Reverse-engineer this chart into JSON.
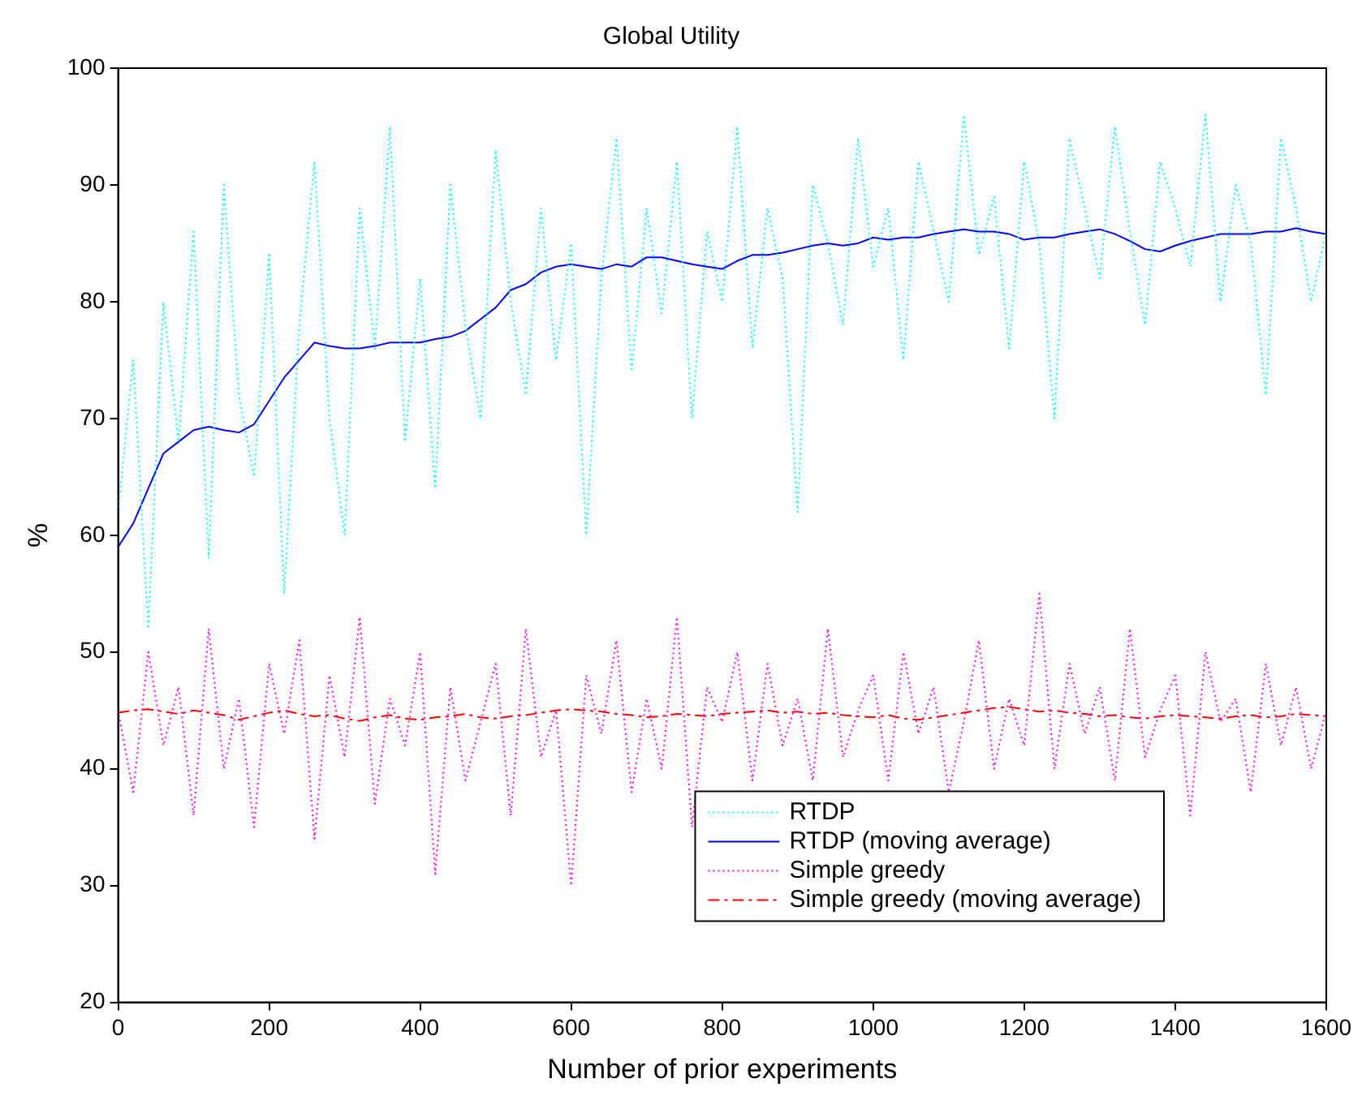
{
  "chart_data": {
    "type": "line",
    "title": "Global Utility",
    "xlabel": "Number of prior experiments",
    "ylabel": "%",
    "x": [
      0,
      20,
      40,
      60,
      80,
      100,
      120,
      140,
      160,
      180,
      200,
      220,
      240,
      260,
      280,
      300,
      320,
      340,
      360,
      380,
      400,
      420,
      440,
      460,
      480,
      500,
      520,
      540,
      560,
      580,
      600,
      620,
      640,
      660,
      680,
      700,
      720,
      740,
      760,
      780,
      800,
      820,
      840,
      860,
      880,
      900,
      920,
      940,
      960,
      980,
      1000,
      1020,
      1040,
      1060,
      1080,
      1100,
      1120,
      1140,
      1160,
      1180,
      1200,
      1220,
      1240,
      1260,
      1280,
      1300,
      1320,
      1340,
      1360,
      1380,
      1400,
      1420,
      1440,
      1460,
      1480,
      1500,
      1520,
      1540,
      1560,
      1580,
      1600
    ],
    "series": [
      {
        "name": "RTDP",
        "color": "#00ffff",
        "line_style": "dotted",
        "values": [
          62,
          75,
          52,
          80,
          68,
          86,
          58,
          90,
          72,
          65,
          84,
          55,
          78,
          92,
          70,
          60,
          88,
          76,
          95,
          68,
          82,
          64,
          90,
          78,
          70,
          93,
          80,
          72,
          88,
          75,
          85,
          60,
          82,
          94,
          74,
          88,
          79,
          92,
          70,
          86,
          80,
          95,
          76,
          88,
          82,
          62,
          90,
          85,
          78,
          94,
          83,
          88,
          75,
          92,
          86,
          80,
          96,
          84,
          89,
          76,
          92,
          85,
          70,
          94,
          88,
          82,
          95,
          86,
          78,
          92,
          88,
          83,
          96,
          80,
          90,
          85,
          72,
          94,
          88,
          80,
          86
        ]
      },
      {
        "name": "RTDP (moving average)",
        "color": "#0000ff",
        "line_style": "solid",
        "values": [
          59,
          61,
          64,
          67,
          68,
          69,
          69.3,
          69,
          68.8,
          69.5,
          71.5,
          73.5,
          75,
          76.5,
          76.2,
          76,
          76,
          76.2,
          76.5,
          76.5,
          76.5,
          76.8,
          77,
          77.5,
          78.5,
          79.5,
          81,
          81.5,
          82.5,
          83,
          83.2,
          83,
          82.8,
          83.2,
          83,
          83.8,
          83.8,
          83.5,
          83.2,
          83,
          82.8,
          83.5,
          84,
          84,
          84.2,
          84.5,
          84.8,
          85,
          84.8,
          85,
          85.5,
          85.3,
          85.5,
          85.5,
          85.8,
          86,
          86.2,
          86,
          86,
          85.8,
          85.3,
          85.5,
          85.5,
          85.8,
          86,
          86.2,
          85.8,
          85.2,
          84.5,
          84.3,
          84.8,
          85.2,
          85.5,
          85.8,
          85.8,
          85.8,
          86,
          86,
          86.3,
          86,
          85.8
        ]
      },
      {
        "name": "Simple greedy",
        "color": "#ff00ff",
        "line_style": "dotted",
        "values": [
          45,
          38,
          50,
          42,
          47,
          36,
          52,
          40,
          46,
          35,
          49,
          43,
          51,
          34,
          48,
          41,
          53,
          37,
          46,
          42,
          50,
          31,
          47,
          39,
          44,
          49,
          36,
          52,
          41,
          45,
          30,
          48,
          43,
          51,
          38,
          46,
          40,
          53,
          35,
          47,
          44,
          50,
          39,
          49,
          42,
          46,
          39,
          52,
          41,
          45,
          48,
          39,
          50,
          43,
          47,
          38,
          44,
          51,
          40,
          46,
          42,
          55,
          40,
          49,
          43,
          47,
          39,
          52,
          41,
          45,
          48,
          36,
          50,
          44,
          46,
          38,
          49,
          42,
          47,
          40,
          45
        ]
      },
      {
        "name": "Simple greedy (moving average)",
        "color": "#ff0000",
        "line_style": "dashed",
        "values": [
          44.8,
          45,
          45.1,
          44.9,
          44.7,
          45,
          44.8,
          44.6,
          44.2,
          44.5,
          44.8,
          45,
          44.7,
          44.5,
          44.6,
          44.3,
          44.1,
          44.4,
          44.6,
          44.3,
          44.2,
          44.4,
          44.5,
          44.7,
          44.4,
          44.3,
          44.5,
          44.6,
          44.8,
          45,
          45.1,
          45,
          44.9,
          44.7,
          44.6,
          44.4,
          44.5,
          44.7,
          44.6,
          44.5,
          44.7,
          44.8,
          44.9,
          45,
          44.8,
          44.9,
          44.7,
          44.8,
          44.6,
          44.5,
          44.4,
          44.6,
          44.3,
          44.2,
          44.4,
          44.6,
          44.8,
          45,
          45.2,
          45.3,
          45.1,
          44.9,
          45,
          44.8,
          44.7,
          44.5,
          44.6,
          44.4,
          44.3,
          44.5,
          44.6,
          44.5,
          44.4,
          44.3,
          44.5,
          44.6,
          44.4,
          44.5,
          44.7,
          44.6,
          44.5
        ]
      }
    ],
    "xlim": [
      0,
      1600
    ],
    "xticks": [
      0,
      200,
      400,
      600,
      800,
      1000,
      1200,
      1400,
      1600
    ],
    "ylim": [
      20,
      100
    ],
    "yticks": [
      20,
      30,
      40,
      50,
      60,
      70,
      80,
      90,
      100
    ],
    "grid": false,
    "legend": "bottom right",
    "marker": "none"
  }
}
